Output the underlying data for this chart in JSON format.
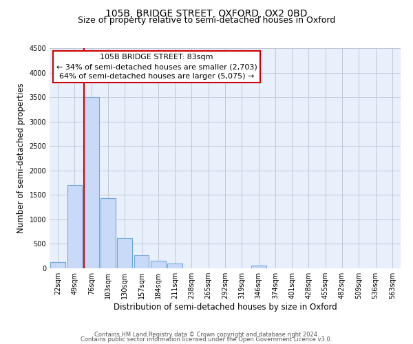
{
  "title": "105B, BRIDGE STREET, OXFORD, OX2 0BD",
  "subtitle": "Size of property relative to semi-detached houses in Oxford",
  "xlabel": "Distribution of semi-detached houses by size in Oxford",
  "ylabel": "Number of semi-detached properties",
  "bar_labels": [
    "22sqm",
    "49sqm",
    "76sqm",
    "103sqm",
    "130sqm",
    "157sqm",
    "184sqm",
    "211sqm",
    "238sqm",
    "265sqm",
    "292sqm",
    "319sqm",
    "346sqm",
    "374sqm",
    "401sqm",
    "428sqm",
    "455sqm",
    "482sqm",
    "509sqm",
    "536sqm",
    "563sqm"
  ],
  "bar_values": [
    130,
    1700,
    3500,
    1440,
    620,
    270,
    160,
    95,
    0,
    0,
    0,
    0,
    55,
    0,
    0,
    0,
    0,
    0,
    0,
    0,
    0
  ],
  "bar_color": "#c9daf8",
  "bar_edge_color": "#6fa8dc",
  "ylim": [
    0,
    4500
  ],
  "yticks": [
    0,
    500,
    1000,
    1500,
    2000,
    2500,
    3000,
    3500,
    4000,
    4500
  ],
  "annotation_title": "105B BRIDGE STREET: 83sqm",
  "annotation_line1": "← 34% of semi-detached houses are smaller (2,703)",
  "annotation_line2": "64% of semi-detached houses are larger (5,075) →",
  "annotation_box_color": "#ffffff",
  "annotation_box_edge": "#cc0000",
  "vline_color": "#cc0000",
  "footer_line1": "Contains HM Land Registry data © Crown copyright and database right 2024.",
  "footer_line2": "Contains public sector information licensed under the Open Government Licence v3.0.",
  "background_color": "#ffffff",
  "plot_bg_color": "#e8f0fc",
  "grid_color": "#c0c8d8",
  "title_fontsize": 10,
  "subtitle_fontsize": 9,
  "axis_label_fontsize": 8.5,
  "tick_fontsize": 7,
  "annotation_fontsize": 8,
  "footer_fontsize": 6
}
